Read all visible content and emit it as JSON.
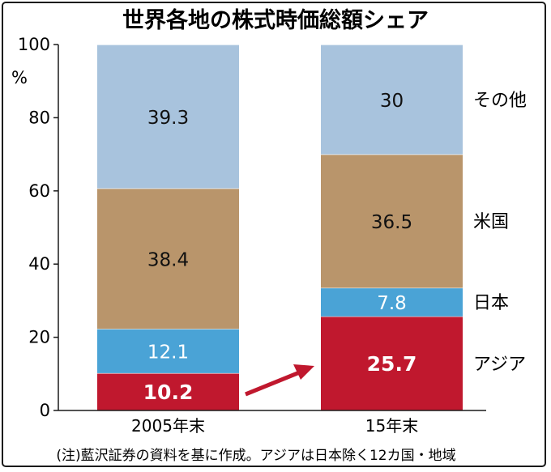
{
  "chart_data": {
    "type": "bar",
    "stacked": true,
    "title": "世界各地の株式時価総額シェア",
    "ylabel": "%",
    "ylim": [
      0,
      100
    ],
    "yticks": [
      0,
      20,
      40,
      60,
      80,
      100
    ],
    "categories": [
      "2005年末",
      "15年末"
    ],
    "series": [
      {
        "name": "アジア",
        "values": [
          10.2,
          25.7
        ],
        "labels": [
          "10.2",
          "25.7"
        ],
        "color": "#c0182e",
        "label_color": "#ffffff",
        "bold": true
      },
      {
        "name": "日本",
        "values": [
          12.1,
          7.8
        ],
        "labels": [
          "12.1",
          "7.8"
        ],
        "color": "#4aa3d6",
        "label_color": "#ffffff",
        "bold": false
      },
      {
        "name": "米国",
        "values": [
          38.4,
          36.5
        ],
        "labels": [
          "38.4",
          "36.5"
        ],
        "color": "#b9956b",
        "label_color": "#111111",
        "bold": false
      },
      {
        "name": "その他",
        "values": [
          39.3,
          30
        ],
        "labels": [
          "39.3",
          "30"
        ],
        "color": "#a8c3dd",
        "label_color": "#111111",
        "bold": false
      }
    ],
    "arrow_color": "#c0182e",
    "grid": false,
    "legend": "right, beside second bar",
    "note": "(注)藍沢証券の資料を基に作成。アジアは日本除く12カ国・地域"
  }
}
